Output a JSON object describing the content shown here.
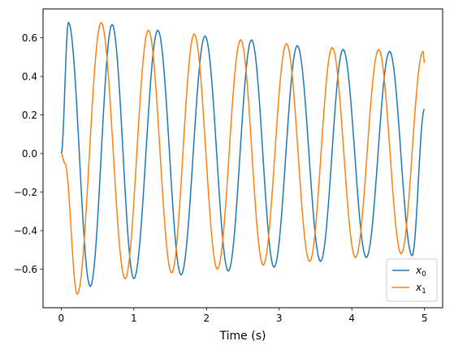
{
  "chart_data": {
    "type": "line",
    "title": "",
    "xlabel": "Time (s)",
    "ylabel": "",
    "xlim": [
      -0.25,
      5.25
    ],
    "ylim": [
      -0.8,
      0.75
    ],
    "xticks": [
      0,
      1,
      2,
      3,
      4,
      5
    ],
    "yticks": [
      -0.6,
      -0.4,
      -0.2,
      0.0,
      0.2,
      0.4,
      0.6
    ],
    "xtick_labels": [
      "0",
      "1",
      "2",
      "3",
      "4",
      "5"
    ],
    "ytick_labels": [
      "−0.6",
      "−0.4",
      "−0.2",
      "0.0",
      "0.2",
      "0.4",
      "0.6"
    ],
    "grid": false,
    "legend_position": "lower-right",
    "series": [
      {
        "name": "x",
        "subscript": "0",
        "color": "#1f77b4",
        "x": [
          0.0,
          0.1,
          0.4,
          0.7,
          1.0,
          1.33,
          1.65,
          1.98,
          2.3,
          2.62,
          2.93,
          3.25,
          3.57,
          3.88,
          4.2,
          4.52,
          4.83,
          5.0
        ],
        "y": [
          0.0,
          0.68,
          -0.69,
          0.67,
          -0.65,
          0.64,
          -0.63,
          0.61,
          -0.61,
          0.59,
          -0.59,
          0.56,
          -0.56,
          0.54,
          -0.54,
          0.53,
          -0.53,
          0.23
        ]
      },
      {
        "name": "x",
        "subscript": "1",
        "color": "#ff7f0e",
        "x": [
          0.0,
          0.05,
          0.22,
          0.55,
          0.88,
          1.2,
          1.52,
          1.83,
          2.15,
          2.47,
          2.78,
          3.1,
          3.42,
          3.73,
          4.05,
          4.37,
          4.68,
          4.98,
          5.0
        ],
        "y": [
          0.0,
          -0.05,
          -0.73,
          0.68,
          -0.65,
          0.64,
          -0.62,
          0.62,
          -0.6,
          0.59,
          -0.58,
          0.57,
          -0.56,
          0.55,
          -0.54,
          0.54,
          -0.52,
          0.53,
          0.47
        ]
      }
    ]
  }
}
